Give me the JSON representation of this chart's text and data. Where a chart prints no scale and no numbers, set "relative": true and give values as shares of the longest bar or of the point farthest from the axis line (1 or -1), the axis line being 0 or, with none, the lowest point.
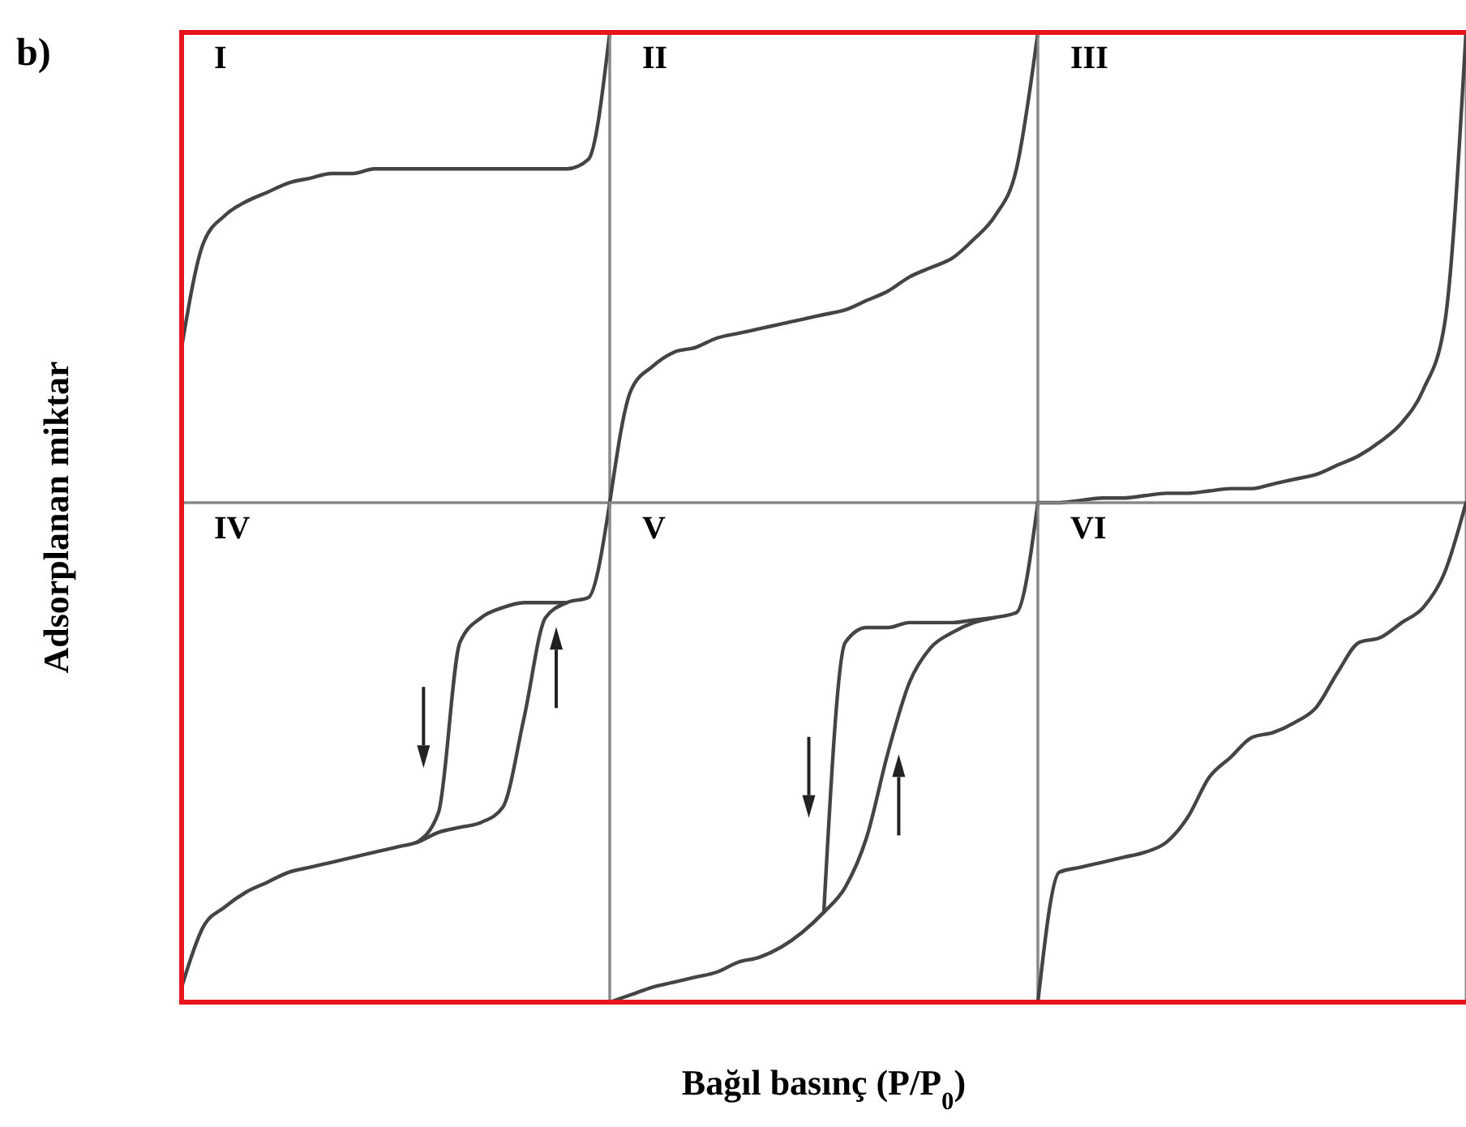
{
  "chart_data": [
    {
      "type": "line",
      "title": "I",
      "ylabel": "Adsorplanan miktar",
      "annotations": [
        "b)"
      ],
      "relative": true,
      "categories": [
        null,
        null,
        null,
        null,
        null,
        null,
        null,
        null,
        null,
        null,
        null,
        null,
        null,
        null,
        null,
        null,
        null,
        null,
        null,
        null,
        null
      ],
      "series": [
        {
          "color": "#444444",
          "values": [
            0.33,
            0.55,
            0.61,
            0.64,
            0.66,
            0.68,
            0.69,
            0.7,
            0.7,
            0.71,
            0.71,
            0.71,
            0.71,
            0.71,
            0.71,
            0.71,
            0.71,
            0.71,
            0.71,
            0.73,
            1
          ]
        }
      ]
    },
    {
      "type": "line",
      "title": "II",
      "relative": true,
      "categories": [
        null,
        null,
        null,
        null,
        null,
        null,
        null,
        null,
        null,
        null,
        null,
        null,
        null,
        null,
        null,
        null,
        null,
        null,
        null,
        null,
        null
      ],
      "series": [
        {
          "color": "#444444",
          "values": [
            0,
            0.24,
            0.29,
            0.32,
            0.33,
            0.35,
            0.36,
            0.37,
            0.38,
            0.39,
            0.4,
            0.41,
            0.43,
            0.45,
            0.48,
            0.5,
            0.52,
            0.56,
            0.61,
            0.71,
            1
          ]
        }
      ]
    },
    {
      "type": "line",
      "title": "III",
      "relative": true,
      "categories": [
        null,
        null,
        null,
        null,
        null,
        null,
        null,
        null,
        null,
        null,
        null,
        null,
        null,
        null,
        null,
        null,
        null,
        null,
        null,
        null,
        null
      ],
      "series": [
        {
          "color": "#444444",
          "values": [
            0,
            0,
            0.005,
            0.01,
            0.01,
            0.015,
            0.02,
            0.02,
            0.025,
            0.03,
            0.03,
            0.04,
            0.05,
            0.06,
            0.08,
            0.1,
            0.13,
            0.17,
            0.24,
            0.38,
            1
          ]
        }
      ]
    },
    {
      "type": "line",
      "title": "IV",
      "relative": true,
      "categories": [
        null,
        null,
        null,
        null,
        null,
        null,
        null,
        null,
        null,
        null,
        null,
        null,
        null,
        null,
        null,
        null,
        null,
        null,
        null,
        null,
        null
      ],
      "series": [
        {
          "color": "#444444",
          "values": [
            0.03,
            0.15,
            0.19,
            0.22,
            0.24,
            0.26,
            0.27,
            0.28,
            0.29,
            0.3,
            0.31,
            0.32,
            0.34,
            0.35,
            0.36,
            0.39,
            0.57,
            0.77,
            0.8,
            0.81,
            1
          ]
        },
        {
          "color": "#444444",
          "values": [
            null,
            null,
            null,
            null,
            null,
            null,
            null,
            null,
            null,
            null,
            null,
            0.32,
            0.38,
            0.72,
            0.77,
            0.79,
            0.8,
            0.8,
            0.8,
            null,
            null
          ]
        }
      ]
    },
    {
      "type": "line",
      "title": "V",
      "xlabel": "Bağıl basınç (P/P$_{0}$)",
      "relative": true,
      "categories": [
        null,
        null,
        null,
        null,
        null,
        null,
        null,
        null,
        null,
        null,
        null,
        null,
        null,
        null,
        null,
        null,
        null,
        null,
        null,
        null,
        null
      ],
      "series": [
        {
          "color": "#444444",
          "values": [
            0,
            0.015,
            0.03,
            0.04,
            0.05,
            0.06,
            0.08,
            0.09,
            0.11,
            0.14,
            0.18,
            0.23,
            0.33,
            0.5,
            0.64,
            0.71,
            0.74,
            0.76,
            0.77,
            0.78,
            1
          ]
        },
        {
          "color": "#444444",
          "values": [
            null,
            null,
            null,
            null,
            null,
            null,
            null,
            null,
            null,
            null,
            0.18,
            0.72,
            0.75,
            0.75,
            0.76,
            0.76,
            0.76,
            0.765,
            0.77,
            null,
            null
          ]
        }
      ]
    },
    {
      "type": "line",
      "title": "VI",
      "relative": true,
      "categories": [
        null,
        null,
        null,
        null,
        null,
        null,
        null,
        null,
        null,
        null,
        null,
        null,
        null,
        null,
        null,
        null,
        null,
        null,
        null,
        null,
        null
      ],
      "series": [
        {
          "color": "#444444",
          "values": [
            0,
            0.26,
            0.27,
            0.28,
            0.29,
            0.3,
            0.32,
            0.37,
            0.45,
            0.49,
            0.53,
            0.54,
            0.56,
            0.59,
            0.66,
            0.72,
            0.73,
            0.76,
            0.79,
            0.86,
            1
          ]
        }
      ]
    }
  ]
}
